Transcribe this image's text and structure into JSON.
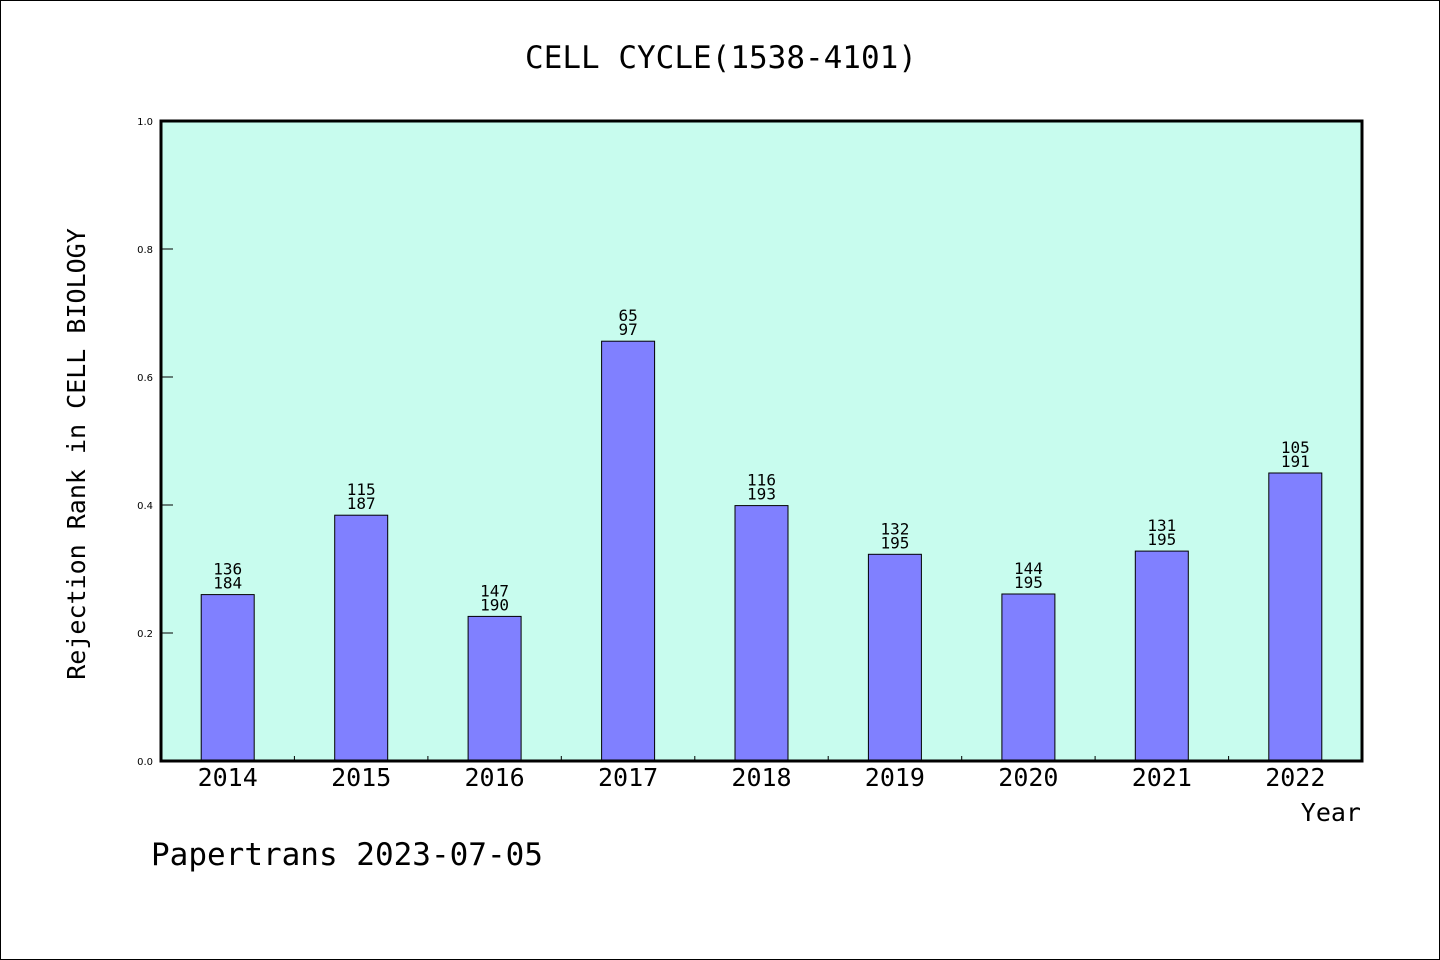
{
  "chart_data": {
    "type": "bar",
    "title": "CELL CYCLE(1538-4101)",
    "xlabel": "Year",
    "ylabel": "Rejection Rank in CELL BIOLOGY",
    "ylim": [
      0.0,
      1.0
    ],
    "yticks": [
      "0.0",
      "0.2",
      "0.4",
      "0.6",
      "0.8",
      "1.0"
    ],
    "grid": false,
    "categories": [
      "2014",
      "2015",
      "2016",
      "2017",
      "2018",
      "2019",
      "2020",
      "2021",
      "2022"
    ],
    "values": [
      0.26,
      0.384,
      0.226,
      0.656,
      0.399,
      0.323,
      0.261,
      0.328,
      0.45
    ],
    "labels_top": [
      "136",
      "115",
      "147",
      "65",
      "116",
      "132",
      "144",
      "131",
      "105"
    ],
    "labels_bottom": [
      "184",
      "187",
      "190",
      "97",
      "193",
      "195",
      "195",
      "195",
      "191"
    ],
    "colors": {
      "plot_background": "#c8fcee",
      "bar_fill": "#8080ff",
      "bar_edge": "#000000"
    }
  },
  "footer": "Papertrans 2023-07-05"
}
